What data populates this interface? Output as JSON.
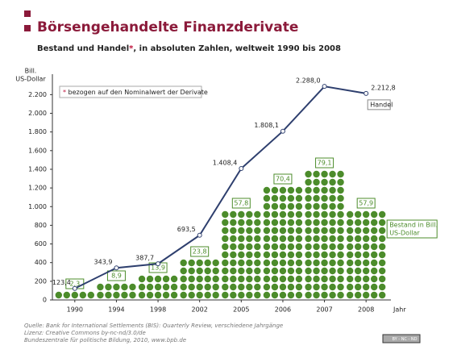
{
  "chart_data": {
    "type": "line",
    "title": "Börsengehandelte Finanzderivate",
    "subtitle": [
      "Bestand und Handel",
      "*",
      ", in absoluten Zahlen, weltweit 1990 bis 2008"
    ],
    "y_label": [
      "Bill.",
      "US-Dollar"
    ],
    "x_label": "Jahr",
    "note": [
      "*",
      " bezogen auf den Nominalwert der Derivate"
    ],
    "categories": [
      "1990",
      "1994",
      "1998",
      "2002",
      "2005",
      "2006",
      "2007",
      "2008"
    ],
    "series": [
      {
        "name": "Handel",
        "color": "#2e3f6e",
        "values": [
          123.4,
          343.9,
          387.7,
          693.5,
          1408.4,
          1808.1,
          2288.0,
          2212.8
        ],
        "value_labels": [
          "123,4",
          "343,9",
          "387,7",
          "693,5",
          "1.408,4",
          "1.808,1",
          "2.288,0",
          "2.212,8"
        ]
      },
      {
        "name": [
          "Bestand in Bill.",
          "US-Dollar"
        ],
        "color": "#4c8c2b",
        "values": [
          2.3,
          8.9,
          13.9,
          23.8,
          57.8,
          70.4,
          79.1,
          57.9
        ],
        "value_labels": [
          "2,3",
          "8,9",
          "13,9",
          "23,8",
          "57,8",
          "70,4",
          "79,1",
          "57,9"
        ]
      }
    ],
    "ylim": [
      0,
      2350
    ],
    "yticks": [
      0,
      200,
      400,
      600,
      800,
      {
        "value": 1000,
        "label": "1.000"
      },
      {
        "value": 1200,
        "label": "1.200"
      },
      {
        "value": 1400,
        "label": "1.400"
      },
      {
        "value": 1600,
        "label": "1.600"
      },
      {
        "value": 1800,
        "label": "1.800"
      },
      {
        "value": 2000,
        "label": "2.000"
      },
      {
        "value": 2200,
        "label": "2.200"
      }
    ],
    "source": [
      "Quelle: Bank for International Settlements (BIS): Quarterly Review, verschiedene Jahrgänge",
      "Lizenz: Creative Commons by-nc-nd/3.0/de",
      "Bundeszentrale für politische Bildung, 2010, www.bpb.de"
    ],
    "license_badge": "BY - NC - ND"
  }
}
